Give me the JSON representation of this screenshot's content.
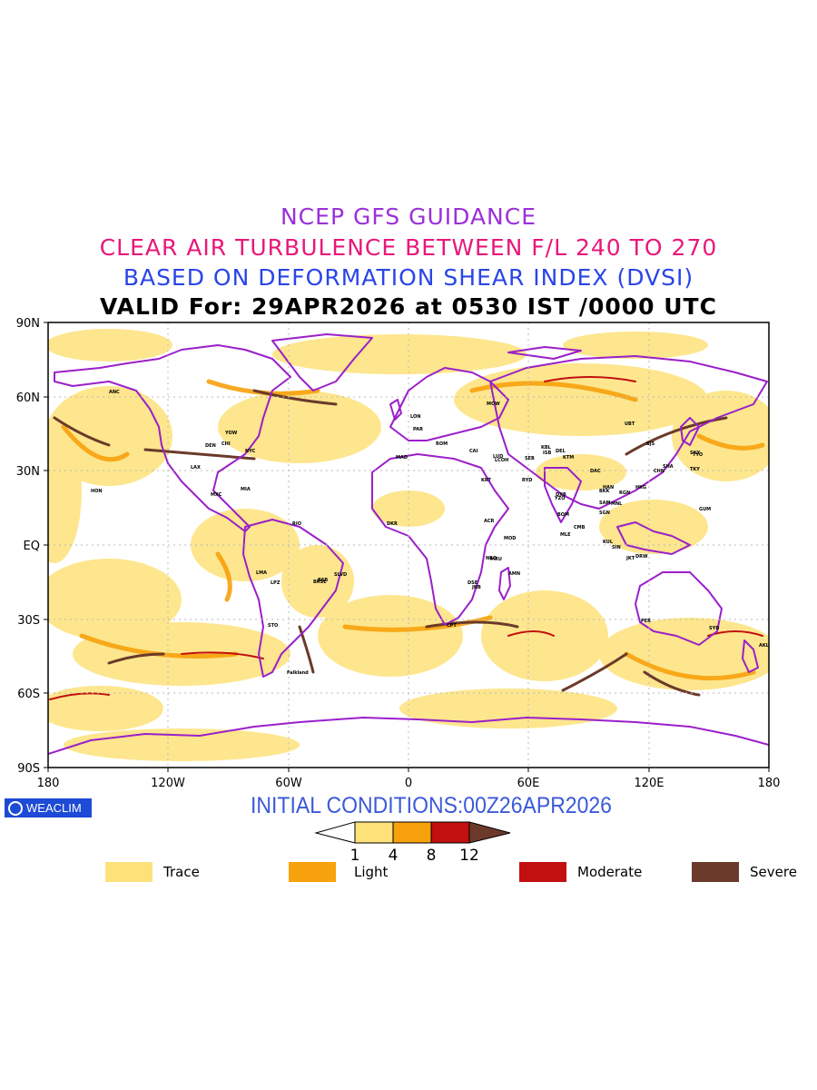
{
  "header": {
    "line1": "NCEP GFS GUIDANCE",
    "line2": "CLEAR AIR TURBULENCE BETWEEN F/L 240 TO 270",
    "line3": "BASED ON DEFORMATION SHEAR INDEX (DVSI)",
    "line4": "VALID For: 29APR2026 at 0530 IST /0000 UTC"
  },
  "axes": {
    "y_ticks": [
      "90N",
      "60N",
      "30N",
      "EQ",
      "30S",
      "60S",
      "90S"
    ],
    "x_ticks": [
      "180",
      "120W",
      "60W",
      "0",
      "60E",
      "120E",
      "180"
    ]
  },
  "footer": {
    "logo_text": "WEACLIM",
    "initial_conditions": "INITIAL CONDITIONS:00Z26APR2026"
  },
  "colorbar": {
    "labels": [
      "1",
      "4",
      "8",
      "12"
    ],
    "colors": [
      "#ffffff",
      "#fde27a",
      "#f7a10c",
      "#c20f0f",
      "#6b3a2a"
    ]
  },
  "legend": [
    {
      "label": "Trace",
      "color": "#fde27a"
    },
    {
      "label": "Light",
      "color": "#f7a10c"
    },
    {
      "label": "Moderate",
      "color": "#c20f0f"
    },
    {
      "label": "Severe",
      "color": "#6b3a2a"
    }
  ],
  "colors": {
    "coastline": "#9b1fc9",
    "trace": "#fde27a",
    "light": "#f7a10c",
    "moderate": "#c20f0f",
    "severe": "#6b3a2a"
  },
  "stations": [
    "HON",
    "MXC",
    "LMA",
    "STO",
    "BRSL",
    "SLVD",
    "LPZ",
    "Falkland",
    "RIO",
    "DKR",
    "ACR",
    "NBO",
    "DSE",
    "MOD",
    "MRU",
    "LUD",
    "AMN",
    "JNB",
    "CPT",
    "SEB",
    "LCOH",
    "RYD",
    "DXB",
    "BOM",
    "MLE",
    "CMB",
    "DEL",
    "BKK",
    "MNL",
    "GUM",
    "SYD",
    "AKL",
    "PER",
    "DRW",
    "HKG",
    "TYO",
    "MOW",
    "LON",
    "PAR",
    "MAD",
    "ROM",
    "ANC",
    "YOW",
    "NYC",
    "CHI",
    "DEN",
    "LAX",
    "MIA",
    "KRT",
    "CAI",
    "BSB",
    "UBT",
    "BJS",
    "SHA",
    "SKY",
    "TKY",
    "CHN",
    "ISB",
    "KBL",
    "KTM",
    "DAC",
    "RGN",
    "HAN",
    "SGN",
    "JKT",
    "KUL",
    "SIN",
    "SAM",
    "YZO"
  ]
}
